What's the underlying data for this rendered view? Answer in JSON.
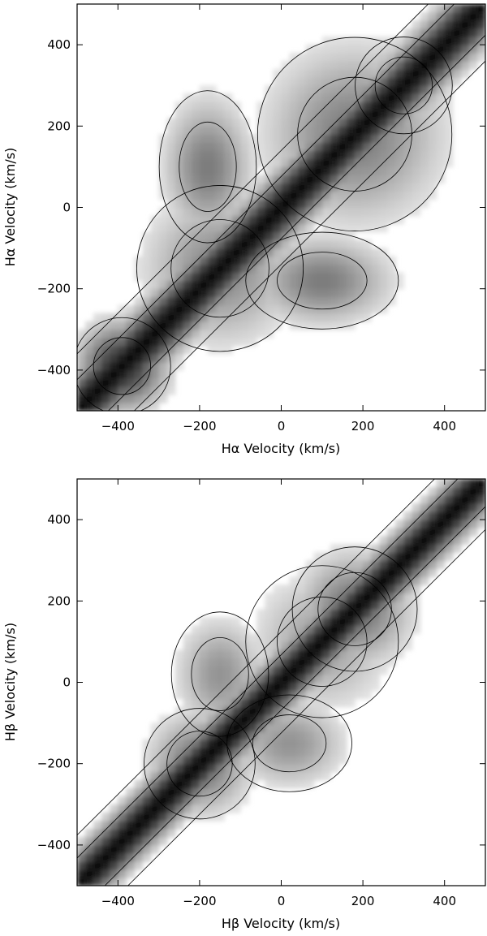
{
  "chart_data": [
    {
      "type": "heatmap",
      "panel": "top",
      "xlabel": "Hα Velocity (km/s)",
      "ylabel": "Hα Velocity (km/s)",
      "xlim": [
        -500,
        500
      ],
      "ylim": [
        -500,
        500
      ],
      "xticks": [
        -400,
        -200,
        0,
        200,
        400
      ],
      "yticks": [
        -400,
        -200,
        0,
        200,
        400
      ],
      "xtick_labels": [
        "−400",
        "−200",
        "0",
        "200",
        "400"
      ],
      "ytick_labels": [
        "−400",
        "−200",
        "0",
        "200",
        "400"
      ],
      "colormap": "grayscale, dark = high correlation",
      "features": [
        {
          "kind": "diagonal",
          "strength": 1.0,
          "width": 45
        },
        {
          "kind": "blob",
          "x": -390,
          "y": -390,
          "sx": 70,
          "sy": 70,
          "strength": 0.9
        },
        {
          "kind": "blob",
          "x": 180,
          "y": 180,
          "sx": 140,
          "sy": 140,
          "strength": 0.55
        },
        {
          "kind": "blob",
          "x": -150,
          "y": -150,
          "sx": 120,
          "sy": 120,
          "strength": 0.5
        },
        {
          "kind": "blob",
          "x": 100,
          "y": -180,
          "sx": 110,
          "sy": 70,
          "strength": 0.55
        },
        {
          "kind": "blob",
          "x": -180,
          "y": 100,
          "sx": 70,
          "sy": 110,
          "strength": 0.55
        },
        {
          "kind": "blob",
          "x": 300,
          "y": 300,
          "sx": 70,
          "sy": 70,
          "strength": 0.5
        }
      ]
    },
    {
      "type": "heatmap",
      "panel": "bottom",
      "xlabel": "Hβ Velocity (km/s)",
      "ylabel": "Hβ Velocity (km/s)",
      "xlim": [
        -500,
        500
      ],
      "ylim": [
        -500,
        500
      ],
      "xticks": [
        -400,
        -200,
        0,
        200,
        400
      ],
      "yticks": [
        -400,
        -200,
        0,
        200,
        400
      ],
      "xtick_labels": [
        "−400",
        "−200",
        "0",
        "200",
        "400"
      ],
      "ytick_labels": [
        "−400",
        "−200",
        "0",
        "200",
        "400"
      ],
      "colormap": "grayscale, dark = high correlation",
      "features": [
        {
          "kind": "diagonal",
          "strength": 1.0,
          "width": 40
        },
        {
          "kind": "blob",
          "x": 180,
          "y": 180,
          "sx": 90,
          "sy": 90,
          "strength": 0.6
        },
        {
          "kind": "blob",
          "x": -200,
          "y": -200,
          "sx": 80,
          "sy": 80,
          "strength": 0.6
        },
        {
          "kind": "blob",
          "x": 20,
          "y": -150,
          "sx": 90,
          "sy": 70,
          "strength": 0.45
        },
        {
          "kind": "blob",
          "x": -150,
          "y": 20,
          "sx": 70,
          "sy": 90,
          "strength": 0.45
        },
        {
          "kind": "blob",
          "x": 100,
          "y": 100,
          "sx": 110,
          "sy": 110,
          "strength": 0.4
        }
      ]
    }
  ]
}
